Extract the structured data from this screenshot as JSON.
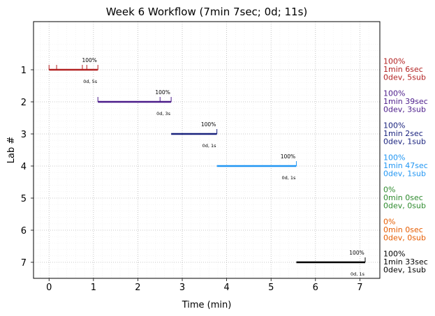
{
  "chart_data": {
    "type": "timeline",
    "title": "Week 6 Workflow (7min 7sec; 0d; 11s)",
    "xlabel": "Time (min)",
    "ylabel": "Lab #",
    "xlim": [
      -0.35,
      7.45
    ],
    "ylim": [
      -0.5,
      7.5
    ],
    "y_inverted": true,
    "grid": true,
    "x_ticks": [
      0,
      1,
      2,
      3,
      4,
      5,
      6,
      7
    ],
    "y_ticks": [
      1,
      2,
      3,
      4,
      5,
      6,
      7
    ],
    "labs": [
      {
        "lab": 1,
        "start": 0.0,
        "end": 1.1,
        "pct_label": "100%",
        "counts_label": "0d, 5s",
        "submissions": [
          0.0,
          0.17,
          0.75,
          0.85,
          1.1
        ],
        "color": "#b22222",
        "side_lines": [
          "100%",
          "1min 6sec",
          "0dev, 5sub"
        ]
      },
      {
        "lab": 2,
        "start": 1.1,
        "end": 2.75,
        "pct_label": "100%",
        "counts_label": "0d, 3s",
        "submissions": [
          1.1,
          2.5,
          2.75
        ],
        "color": "#4b1c8a",
        "side_lines": [
          "100%",
          "1min 39sec",
          "0dev, 3sub"
        ]
      },
      {
        "lab": 3,
        "start": 2.75,
        "end": 3.78,
        "pct_label": "100%",
        "counts_label": "0d, 1s",
        "submissions": [
          3.78
        ],
        "color": "#1a237e",
        "side_lines": [
          "100%",
          "1min 2sec",
          "0dev, 1sub"
        ]
      },
      {
        "lab": 4,
        "start": 3.78,
        "end": 5.57,
        "pct_label": "100%",
        "counts_label": "0d, 1s",
        "submissions": [
          5.57
        ],
        "color": "#2196f3",
        "side_lines": [
          "100%",
          "1min 47sec",
          "0dev, 1sub"
        ]
      },
      {
        "lab": 5,
        "start": null,
        "end": null,
        "pct_label": "",
        "counts_label": "",
        "submissions": [],
        "color": "#2e8b2e",
        "side_lines": [
          "0%",
          "0min 0sec",
          "0dev, 0sub"
        ]
      },
      {
        "lab": 6,
        "start": null,
        "end": null,
        "pct_label": "",
        "counts_label": "",
        "submissions": [],
        "color": "#e65c00",
        "side_lines": [
          "0%",
          "0min 0sec",
          "0dev, 0sub"
        ]
      },
      {
        "lab": 7,
        "start": 5.57,
        "end": 7.12,
        "pct_label": "100%",
        "counts_label": "0d, 1s",
        "submissions": [
          7.12
        ],
        "color": "#000000",
        "side_lines": [
          "100%",
          "1min 33sec",
          "0dev, 1sub"
        ]
      }
    ]
  }
}
